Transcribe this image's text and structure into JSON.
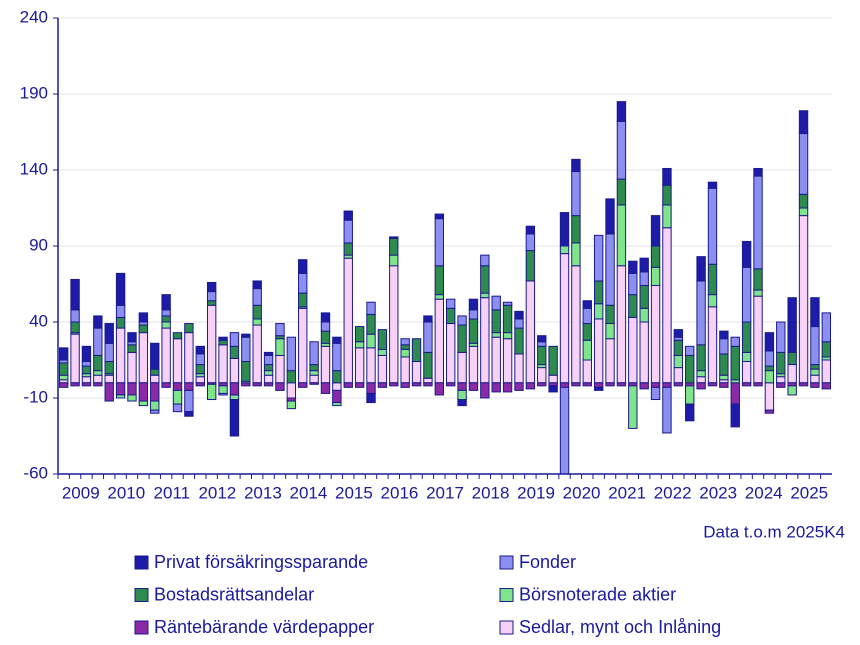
{
  "chart_data": {
    "type": "stacked-bar",
    "annotation": "Data t.o.m 2025K4",
    "categories": [
      "2009",
      null,
      null,
      null,
      "2010",
      null,
      null,
      null,
      "2011",
      null,
      null,
      null,
      "2012",
      null,
      null,
      null,
      "2013",
      null,
      null,
      null,
      "2014",
      null,
      null,
      null,
      "2015",
      null,
      null,
      null,
      "2016",
      null,
      null,
      null,
      "2017",
      null,
      null,
      null,
      "2018",
      null,
      null,
      null,
      "2019",
      null,
      null,
      null,
      "2020",
      null,
      null,
      null,
      "2021",
      null,
      null,
      null,
      "2022",
      null,
      null,
      null,
      "2023",
      null,
      null,
      null,
      "2024",
      null,
      null,
      null,
      "2025",
      null,
      null,
      null
    ],
    "ylim": [
      -60,
      240
    ],
    "yticks": [
      -60,
      -10,
      40,
      90,
      140,
      190,
      240
    ],
    "grid": true,
    "series": [
      {
        "name": "Privat försäkringssparande",
        "color": "#1c1ca8",
        "values": [
          8,
          20,
          10,
          8,
          13,
          21,
          6,
          6,
          17,
          10,
          0,
          -3,
          5,
          6,
          2,
          -24,
          2,
          5,
          2,
          0,
          0,
          9,
          0,
          6,
          4,
          6,
          0,
          -6,
          0,
          1,
          0,
          0,
          4,
          3,
          0,
          -4,
          7,
          0,
          0,
          0,
          5,
          5,
          4,
          -4,
          22,
          8,
          5,
          -2,
          23,
          13,
          8,
          9,
          20,
          11,
          5,
          -11,
          16,
          4,
          5,
          -15,
          17,
          5,
          12,
          0,
          36,
          15,
          19,
          0
        ]
      },
      {
        "name": "Fonder",
        "color": "#8c8ff0",
        "values": [
          2,
          8,
          3,
          18,
          12,
          8,
          2,
          2,
          -2,
          4,
          -5,
          -14,
          7,
          6,
          -1,
          9,
          16,
          11,
          6,
          8,
          22,
          13,
          15,
          6,
          18,
          15,
          0,
          8,
          0,
          0,
          4,
          0,
          20,
          31,
          6,
          6,
          6,
          7,
          9,
          2,
          6,
          11,
          3,
          0,
          -57,
          29,
          10,
          30,
          47,
          38,
          14,
          9,
          -8,
          -30,
          2,
          6,
          42,
          50,
          10,
          6,
          36,
          61,
          10,
          20,
          0,
          40,
          25,
          19
        ]
      },
      {
        "name": "Bostadsrättsandelar",
        "color": "#2e8b4e",
        "values": [
          8,
          7,
          5,
          10,
          8,
          7,
          5,
          5,
          4,
          4,
          4,
          6,
          6,
          3,
          3,
          8,
          13,
          9,
          4,
          2,
          8,
          9,
          4,
          8,
          8,
          8,
          10,
          13,
          13,
          11,
          3,
          15,
          17,
          19,
          10,
          18,
          16,
          18,
          15,
          18,
          17,
          20,
          12,
          19,
          0,
          18,
          11,
          15,
          12,
          17,
          15,
          15,
          14,
          13,
          10,
          18,
          17,
          20,
          14,
          22,
          20,
          14,
          3,
          14,
          8,
          9,
          3,
          10
        ]
      },
      {
        "name": "Börsnoterade aktier",
        "color": "#80e58a",
        "values": [
          3,
          1,
          2,
          3,
          1,
          -2,
          -4,
          -3,
          -6,
          4,
          -9,
          0,
          2,
          -10,
          -5,
          -3,
          1,
          4,
          3,
          11,
          -5,
          1,
          3,
          2,
          -2,
          2,
          4,
          9,
          4,
          7,
          5,
          0,
          0,
          3,
          0,
          -6,
          2,
          3,
          3,
          4,
          0,
          0,
          2,
          0,
          5,
          15,
          13,
          10,
          10,
          40,
          -28,
          9,
          12,
          15,
          8,
          -12,
          4,
          8,
          3,
          2,
          6,
          4,
          8,
          2,
          -6,
          5,
          4,
          2
        ]
      },
      {
        "name": "Räntebärande värdepapper",
        "color": "#8a2aa6",
        "values": [
          -3,
          -2,
          -2,
          -2,
          -12,
          -8,
          -8,
          -12,
          -12,
          -3,
          -5,
          -5,
          -2,
          -1,
          -2,
          -8,
          -2,
          -2,
          -2,
          -5,
          -2,
          -3,
          -1,
          -7,
          -8,
          -3,
          -3,
          -7,
          -3,
          -2,
          -3,
          -2,
          -2,
          -8,
          -2,
          -5,
          -5,
          -10,
          -6,
          -6,
          -5,
          -4,
          -2,
          -2,
          -3,
          -2,
          -2,
          -3,
          -2,
          -2,
          -2,
          -4,
          -3,
          -3,
          -2,
          -2,
          -4,
          -2,
          -3,
          -14,
          -2,
          -2,
          -2,
          -3,
          -2,
          -2,
          -3,
          -4
        ]
      },
      {
        "name": "Sedlar, mynt och Inlåning",
        "color": "#f8d2f6",
        "values": [
          2,
          32,
          4,
          5,
          5,
          36,
          20,
          33,
          5,
          36,
          29,
          33,
          4,
          51,
          25,
          16,
          0,
          38,
          5,
          18,
          -10,
          49,
          5,
          24,
          -5,
          82,
          23,
          23,
          18,
          77,
          17,
          14,
          3,
          55,
          39,
          20,
          24,
          56,
          30,
          29,
          19,
          67,
          10,
          5,
          85,
          77,
          15,
          42,
          29,
          77,
          43,
          40,
          64,
          102,
          10,
          0,
          4,
          50,
          2,
          0,
          14,
          57,
          -18,
          4,
          12,
          110,
          5,
          15
        ]
      }
    ]
  }
}
